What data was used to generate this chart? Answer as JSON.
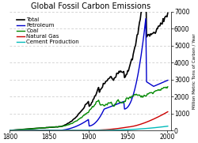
{
  "title": "Global Fossil Carbon Emissions",
  "ylabel": "Million Metric Tons of Carbon / Year",
  "xlim": [
    1800,
    2005
  ],
  "ylim": [
    0,
    7000
  ],
  "yticks": [
    0,
    1000,
    2000,
    3000,
    4000,
    5000,
    6000,
    7000
  ],
  "xticks": [
    1800,
    1850,
    1900,
    1950,
    2000
  ],
  "bg_color": "#ffffff",
  "plot_bg": "#ffffff",
  "grid_color": "#aaaaaa",
  "series": {
    "Total": {
      "color": "#000000",
      "lw": 1.2
    },
    "Petroleum": {
      "color": "#0000cc",
      "lw": 1.0
    },
    "Coal": {
      "color": "#008800",
      "lw": 1.0
    },
    "Natural Gas": {
      "color": "#cc0000",
      "lw": 1.0
    },
    "Cement Production": {
      "color": "#00bbbb",
      "lw": 1.0
    }
  },
  "legend_fontsize": 5.0,
  "title_fontsize": 7.0,
  "tick_fontsize": 5.5
}
